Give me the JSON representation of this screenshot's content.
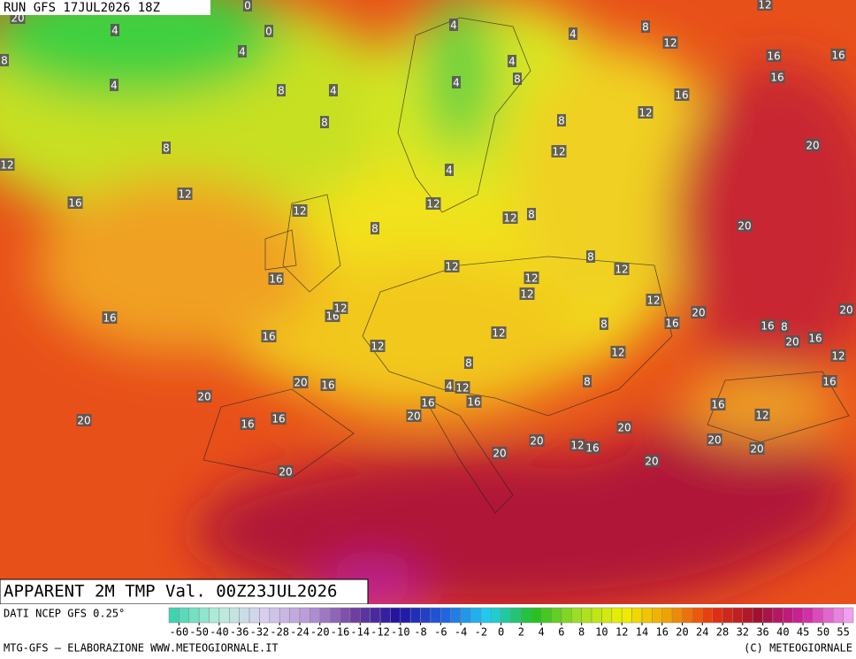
{
  "header": {
    "run": "RUN GFS 17JUL2026 18Z"
  },
  "map": {
    "labels": [
      0,
      4,
      0,
      4,
      4,
      8,
      4,
      4,
      4,
      8,
      12,
      12,
      16,
      16,
      16,
      8,
      4,
      8,
      4,
      16,
      12,
      8,
      8,
      8,
      12,
      20,
      12,
      4,
      12,
      16,
      12,
      12,
      12,
      8,
      8,
      20,
      8,
      12,
      12,
      12,
      16,
      12,
      12,
      16,
      12,
      20,
      16,
      16,
      8,
      16,
      8,
      20,
      12,
      16,
      12,
      20,
      16,
      12,
      12,
      8,
      20,
      16,
      8,
      16,
      4,
      12,
      20,
      16,
      16,
      20,
      16,
      12,
      16,
      16,
      20,
      20,
      20,
      20,
      12,
      16,
      20,
      20,
      20,
      20,
      20
    ]
  },
  "footer": {
    "title": "APPARENT 2M TMP Val. 00Z23JUL2026",
    "source": "DATI NCEP GFS 0.25°",
    "credit": "MTG-GFS — ELABORAZIONE WWW.METEOGIORNALE.IT",
    "copyright": "(C) METEOGIORNALE"
  },
  "colorbar": {
    "ticks": [
      -60,
      -50,
      -40,
      -36,
      -32,
      -28,
      -24,
      -20,
      -16,
      -14,
      -12,
      -10,
      -8,
      -6,
      -4,
      -2,
      0,
      2,
      4,
      6,
      8,
      10,
      12,
      14,
      16,
      20,
      24,
      28,
      32,
      36,
      40,
      45,
      50,
      55
    ]
  }
}
